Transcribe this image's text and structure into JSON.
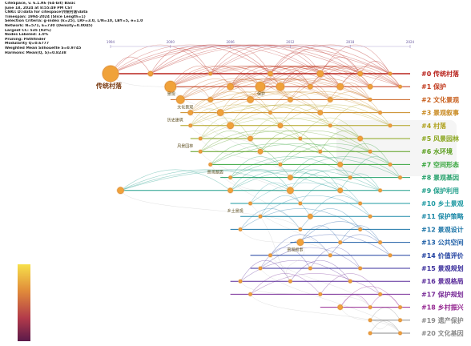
{
  "meta_lines": [
    "CiteSpace, v. 6.1.R6 (64-bit) Basic",
    "June 18, 2024 at 8:55:49 PM CST",
    "CNKI: D:\\data for citespace\\传统村落\\data",
    "Timespan: 1994-2024 (Slice Length=1)",
    "Selection Criteria: g-index (k=25), LRF=3.0, L/N=10, LBY=5, e=1.0",
    "Network: N=571, E=730 (Density=0.0045)",
    "Largest CC: 535 (93%)",
    "Nodes Labeled: 1.0%",
    "Pruning: Pathfinder",
    "Modularity Q=0.6777",
    "Weighted Mean Silhouette S=0.9745",
    "Harmonic Mean(Q, S)=0.8238"
  ],
  "chart_data": {
    "type": "timeline",
    "title": "",
    "xlabel": "",
    "ylabel": "",
    "x_ticks": [
      "1994",
      "2000",
      "2006",
      "2012",
      "2018",
      "2024"
    ],
    "x_range": [
      1994,
      2024
    ],
    "legend": {
      "type": "color-scale",
      "placement": "bottom-left",
      "colors": [
        "#f7e04a",
        "#e08a3a",
        "#b23a4a",
        "#5a1a4a"
      ]
    },
    "clusters": [
      {
        "label": "#0 传统村落",
        "color": "#b8231d",
        "start": 1994,
        "end": 2024,
        "nodes": [
          [
            1994,
            10
          ],
          [
            1998,
            3
          ],
          [
            2004,
            2
          ],
          [
            2010,
            3
          ],
          [
            2015,
            4
          ],
          [
            2019,
            3
          ],
          [
            2022,
            2
          ]
        ]
      },
      {
        "label": "#1 保护",
        "color": "#c13a1e",
        "start": 2000,
        "end": 2024,
        "nodes": [
          [
            2000,
            7
          ],
          [
            2006,
            4
          ],
          [
            2009,
            6
          ],
          [
            2011,
            5
          ],
          [
            2014,
            3
          ],
          [
            2017,
            4
          ],
          [
            2020,
            3
          ],
          [
            2023,
            2
          ]
        ]
      },
      {
        "label": "#2 文化景观",
        "color": "#c8601e",
        "start": 2000,
        "end": 2024,
        "nodes": [
          [
            2001,
            5
          ],
          [
            2004,
            3
          ],
          [
            2008,
            4
          ],
          [
            2012,
            3
          ],
          [
            2016,
            3
          ],
          [
            2020,
            2
          ]
        ]
      },
      {
        "label": "#3 景观叙事",
        "color": "#c98a22",
        "start": 2001,
        "end": 2024,
        "nodes": [
          [
            2002,
            3
          ],
          [
            2005,
            4
          ],
          [
            2010,
            2
          ],
          [
            2015,
            3
          ],
          [
            2021,
            2
          ]
        ]
      },
      {
        "label": "#4 村落",
        "color": "#b0a21f",
        "start": 2001,
        "end": 2024,
        "nodes": [
          [
            2002,
            2
          ],
          [
            2006,
            4
          ],
          [
            2011,
            3
          ],
          [
            2016,
            2
          ],
          [
            2022,
            2
          ]
        ]
      },
      {
        "label": "#5 风景园林",
        "color": "#8aa61e",
        "start": 2002,
        "end": 2024,
        "nodes": [
          [
            2003,
            2
          ],
          [
            2008,
            3
          ],
          [
            2013,
            2
          ],
          [
            2019,
            3
          ]
        ]
      },
      {
        "label": "#6 水环境",
        "color": "#5a9e1e",
        "start": 2002,
        "end": 2024,
        "nodes": [
          [
            2003,
            2
          ],
          [
            2009,
            3
          ],
          [
            2015,
            2
          ],
          [
            2020,
            2
          ]
        ]
      },
      {
        "label": "#7 空间形态",
        "color": "#34a43a",
        "start": 2004,
        "end": 2024,
        "nodes": [
          [
            2004,
            2
          ],
          [
            2011,
            2
          ],
          [
            2017,
            3
          ],
          [
            2022,
            2
          ]
        ]
      },
      {
        "label": "#8 景观基因",
        "color": "#24a06a",
        "start": 2005,
        "end": 2024,
        "nodes": [
          [
            2006,
            2
          ],
          [
            2012,
            3
          ],
          [
            2018,
            2
          ],
          [
            2023,
            2
          ]
        ]
      },
      {
        "label": "#9 保护利用",
        "color": "#1f9e8a",
        "start": 1995,
        "end": 2024,
        "nodes": [
          [
            1995,
            4
          ],
          [
            2006,
            3
          ],
          [
            2012,
            4
          ],
          [
            2017,
            3
          ],
          [
            2021,
            2
          ]
        ]
      },
      {
        "label": "#10 乡土景观",
        "color": "#1e9aa2",
        "start": 2006,
        "end": 2024,
        "nodes": [
          [
            2008,
            2
          ],
          [
            2013,
            2
          ],
          [
            2019,
            2
          ]
        ]
      },
      {
        "label": "#11 保护策略",
        "color": "#1e8aa8",
        "start": 2007,
        "end": 2024,
        "nodes": [
          [
            2009,
            2
          ],
          [
            2014,
            3
          ],
          [
            2020,
            2
          ]
        ]
      },
      {
        "label": "#12 景观设计",
        "color": "#1e76a8",
        "start": 2006,
        "end": 2024,
        "nodes": [
          [
            2007,
            2
          ],
          [
            2013,
            2
          ],
          [
            2019,
            2
          ]
        ]
      },
      {
        "label": "#13 公共空间",
        "color": "#1e5ea6",
        "start": 2012,
        "end": 2024,
        "nodes": [
          [
            2013,
            4
          ],
          [
            2017,
            2
          ],
          [
            2021,
            2
          ]
        ]
      },
      {
        "label": "#14 价值评价",
        "color": "#2040a0",
        "start": 2008,
        "end": 2024,
        "nodes": [
          [
            2010,
            2
          ],
          [
            2016,
            2
          ],
          [
            2022,
            2
          ]
        ]
      },
      {
        "label": "#15 景观规划",
        "color": "#3a2e9c",
        "start": 2008,
        "end": 2024,
        "nodes": [
          [
            2009,
            2
          ],
          [
            2014,
            2
          ],
          [
            2019,
            2
          ]
        ]
      },
      {
        "label": "#16 景观格局",
        "color": "#5a2c9a",
        "start": 2006,
        "end": 2024,
        "nodes": [
          [
            2007,
            2
          ],
          [
            2012,
            2
          ],
          [
            2018,
            2
          ]
        ]
      },
      {
        "label": "#17 保护规划",
        "color": "#7a2e98",
        "start": 2006,
        "end": 2024,
        "nodes": [
          [
            2008,
            2
          ],
          [
            2015,
            2
          ],
          [
            2021,
            2
          ]
        ]
      },
      {
        "label": "#18 乡村振兴",
        "color": "#962a92",
        "start": 2015,
        "end": 2024,
        "nodes": [
          [
            2017,
            3
          ],
          [
            2020,
            2
          ],
          [
            2023,
            2
          ]
        ]
      },
      {
        "label": "#19 遗产保护",
        "color": "#8a8a8a",
        "start": 2020,
        "end": 2024,
        "nodes": [
          [
            2020,
            2
          ],
          [
            2023,
            2
          ]
        ]
      },
      {
        "label": "#20 文化基因",
        "color": "#8a8a8a",
        "start": 2020,
        "end": 2024,
        "nodes": [
          [
            2020,
            2
          ],
          [
            2023,
            2
          ]
        ]
      }
    ],
    "keywords": [
      {
        "text": "传统村落",
        "cluster": 0,
        "year": 1994,
        "big": true
      },
      {
        "text": "景观",
        "cluster": 1,
        "year": 2000
      },
      {
        "text": "保护",
        "cluster": 1,
        "year": 2009
      },
      {
        "text": "文化景观",
        "cluster": 2,
        "year": 2001
      },
      {
        "text": "历史建筑",
        "cluster": 3,
        "year": 2000
      },
      {
        "text": "风景园林",
        "cluster": 5,
        "year": 2001
      },
      {
        "text": "景观基因",
        "cluster": 7,
        "year": 2004
      },
      {
        "text": "乡土景观",
        "cluster": 10,
        "year": 2006
      },
      {
        "text": "景观叙事",
        "cluster": 13,
        "year": 2012
      }
    ]
  }
}
